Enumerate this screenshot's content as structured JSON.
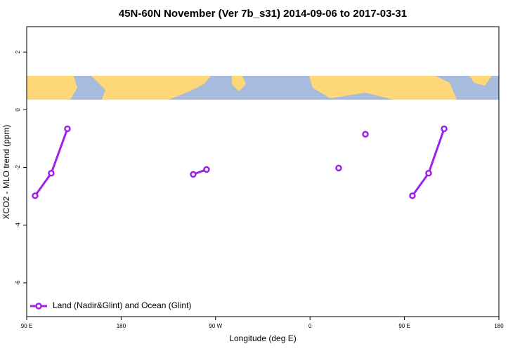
{
  "chart_data": {
    "type": "line",
    "title": "45N-60N November (Ver 7b_s31)   2014-09-06 to 2017-03-31",
    "x_label": "Longitude (deg E)",
    "y_label": "XCO2 - MLO trend (ppm)",
    "xlim": [
      90,
      540
    ],
    "ylim": [
      -7.17,
      2.88
    ],
    "xticks": [
      {
        "value": 90,
        "label": "90 E"
      },
      {
        "value": 180,
        "label": "180"
      },
      {
        "value": 270,
        "label": "90 W"
      },
      {
        "value": 360,
        "label": "0"
      },
      {
        "value": 450,
        "label": "90 E"
      },
      {
        "value": 540,
        "label": "180"
      }
    ],
    "yticks": [
      2,
      0,
      -2,
      -4,
      -6
    ],
    "legend": "bottom-left",
    "series": [
      {
        "name": "Land (Nadir&Glint) and Ocean (Glint)",
        "color": "#a020f0",
        "x": [
          98,
          113.4,
          128.8,
          null,
          248.7,
          261.4,
          null,
          387.3,
          null,
          412.8,
          null,
          457.6,
          473.0,
          487.8
        ],
        "values": [
          -2.98,
          -2.2,
          -0.66,
          null,
          -2.24,
          -2.07,
          null,
          -2.02,
          null,
          -0.85,
          null,
          -2.98,
          -2.2,
          -0.66
        ]
      }
    ]
  }
}
